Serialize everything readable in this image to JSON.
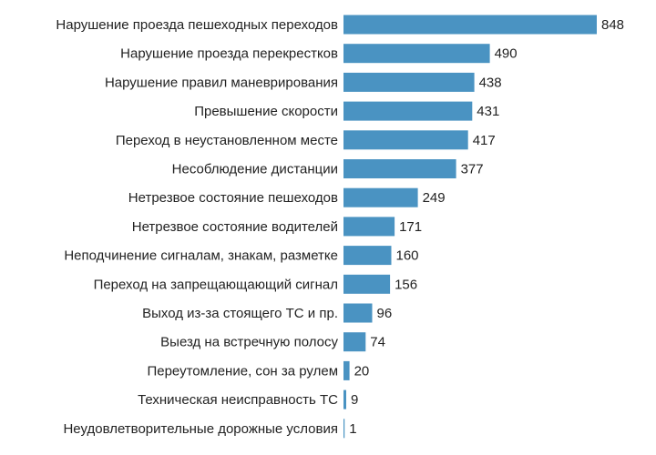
{
  "chart_data": {
    "type": "bar",
    "orientation": "horizontal",
    "title": "",
    "xlabel": "",
    "ylabel": "",
    "grid": false,
    "legend": "none",
    "bar_color": "#4a93c2",
    "xlim": [
      0,
      848
    ],
    "categories": [
      "Нарушение проезда пешеходных переходов",
      "Нарушение проезда перекрестков",
      "Нарушение правил маневрирования",
      "Превышение скорости",
      "Переход в неустановленном месте",
      "Несоблюдение дистанции",
      "Нетрезвое состояние пешеходов",
      "Нетрезвое состояние водителей",
      "Неподчинение сигналам, знакам, разметке",
      "Переход на запрещающающий сигнал",
      "Выход из-за стоящего ТС и пр.",
      "Выезд на встречную полосу",
      "Переутомление, сон за рулем",
      "Техническая неисправность ТС",
      "Неудовлетворительные дорожные условия"
    ],
    "values": [
      848,
      490,
      438,
      431,
      417,
      377,
      249,
      171,
      160,
      156,
      96,
      74,
      20,
      9,
      1
    ]
  }
}
